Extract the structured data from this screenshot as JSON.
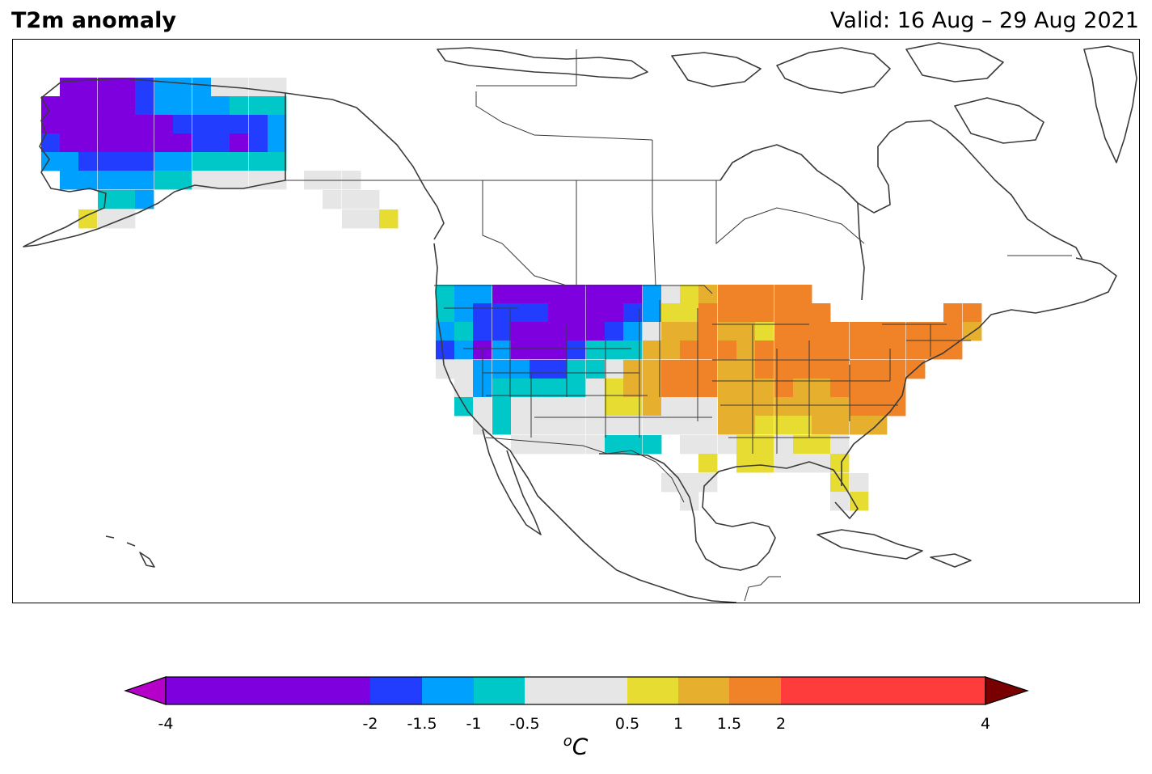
{
  "title": "T2m anomaly",
  "valid": "Valid: 16 Aug – 29 Aug 2021",
  "colorbar": {
    "unit_prefix": "o",
    "unit_main": "C",
    "ticks": [
      "-4",
      "-2",
      "-1.5",
      "-1",
      "-0.5",
      "0.5",
      "1",
      "1.5",
      "2",
      "4"
    ],
    "bins": [
      {
        "from": -4,
        "to": -2,
        "color": "#7f00df"
      },
      {
        "from": -2,
        "to": -1.5,
        "color": "#233dff"
      },
      {
        "from": -1.5,
        "to": -1,
        "color": "#00a0ff"
      },
      {
        "from": -1,
        "to": -0.5,
        "color": "#00c8c8"
      },
      {
        "from": -0.5,
        "to": 0.5,
        "color": "#e6e6e6"
      },
      {
        "from": 0.5,
        "to": 1,
        "color": "#e6dc32"
      },
      {
        "from": 1,
        "to": 1.5,
        "color": "#e6af2d"
      },
      {
        "from": 1.5,
        "to": 2,
        "color": "#f08228"
      },
      {
        "from": 2,
        "to": 4,
        "color": "#ff3c3c"
      }
    ],
    "under_color": "#b400c8",
    "over_color": "#780000"
  }
}
